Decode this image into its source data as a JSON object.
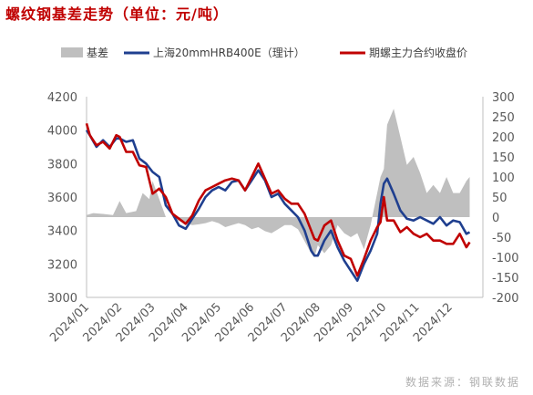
{
  "title": "螺纹钢基差走势（单位：元/吨）",
  "source_note": "数据来源：钢联数据",
  "colors": {
    "title": "#c00000",
    "basis_fill": "#bfbfbf",
    "spot_line": "#1f3f8f",
    "futures_line": "#c00000"
  },
  "chart_data": {
    "type": "line",
    "legend_position": "top",
    "grid": false,
    "x_tick_labels": [
      "2024/01",
      "2024/02",
      "2024/03",
      "2024/04",
      "2024/05",
      "2024/06",
      "2024/07",
      "2024/08",
      "2024/09",
      "2024/10",
      "2024/11",
      "2024/12"
    ],
    "y_left": {
      "range": [
        3000,
        4200
      ],
      "ticks": [
        "3000",
        "3200",
        "3400",
        "3600",
        "3800",
        "4000",
        "4200"
      ]
    },
    "y_right": {
      "range": [
        -200,
        300
      ],
      "ticks": [
        "-200",
        "-150",
        "-100",
        "-50",
        "0",
        "50",
        "100",
        "150",
        "200",
        "250",
        "300"
      ]
    },
    "series": [
      {
        "name": "基差",
        "kind": "area",
        "axis": "right",
        "x": [
          0.0,
          0.2,
          0.5,
          0.8,
          1.0,
          1.2,
          1.5,
          1.7,
          1.9,
          2.0,
          2.2,
          2.4,
          2.6,
          2.8,
          3.0,
          3.2,
          3.4,
          3.6,
          3.8,
          4.0,
          4.2,
          4.4,
          4.6,
          4.8,
          5.0,
          5.2,
          5.4,
          5.6,
          5.8,
          6.0,
          6.2,
          6.4,
          6.6,
          6.8,
          6.9,
          7.0,
          7.2,
          7.4,
          7.6,
          7.8,
          8.0,
          8.2,
          8.4,
          8.6,
          8.8,
          8.9,
          9.0,
          9.1,
          9.3,
          9.5,
          9.7,
          9.9,
          10.1,
          10.3,
          10.5,
          10.7,
          10.9,
          11.1,
          11.3,
          11.5,
          11.6
        ],
        "values": [
          5,
          10,
          8,
          5,
          40,
          10,
          15,
          60,
          45,
          90,
          45,
          0,
          0,
          -10,
          -15,
          -20,
          -18,
          -15,
          -10,
          -15,
          -25,
          -20,
          -15,
          -20,
          -30,
          -25,
          -35,
          -40,
          -30,
          -20,
          -20,
          -30,
          -60,
          -90,
          -100,
          -70,
          -90,
          -70,
          -20,
          -40,
          -50,
          -40,
          -80,
          -20,
          60,
          100,
          120,
          230,
          270,
          200,
          130,
          150,
          110,
          60,
          80,
          60,
          100,
          60,
          60,
          90,
          100
        ]
      },
      {
        "name": "上海20mmHRB400E（理计）",
        "kind": "line",
        "axis": "left",
        "x": [
          0.0,
          0.1,
          0.3,
          0.5,
          0.7,
          0.9,
          1.0,
          1.2,
          1.4,
          1.6,
          1.8,
          2.0,
          2.2,
          2.4,
          2.6,
          2.8,
          3.0,
          3.2,
          3.4,
          3.6,
          3.8,
          4.0,
          4.2,
          4.4,
          4.6,
          4.8,
          5.0,
          5.2,
          5.4,
          5.6,
          5.8,
          6.0,
          6.2,
          6.4,
          6.6,
          6.8,
          6.9,
          7.0,
          7.2,
          7.4,
          7.6,
          7.8,
          8.0,
          8.2,
          8.4,
          8.6,
          8.8,
          8.9,
          9.0,
          9.1,
          9.3,
          9.5,
          9.7,
          9.9,
          10.1,
          10.3,
          10.5,
          10.7,
          10.9,
          11.1,
          11.3,
          11.5,
          11.6
        ],
        "values": [
          4000,
          3970,
          3900,
          3940,
          3900,
          3950,
          3950,
          3930,
          3940,
          3830,
          3800,
          3750,
          3720,
          3550,
          3500,
          3430,
          3410,
          3470,
          3530,
          3600,
          3640,
          3660,
          3640,
          3690,
          3700,
          3640,
          3700,
          3760,
          3700,
          3600,
          3620,
          3560,
          3520,
          3480,
          3400,
          3280,
          3250,
          3250,
          3340,
          3400,
          3300,
          3220,
          3160,
          3100,
          3200,
          3280,
          3380,
          3560,
          3680,
          3710,
          3620,
          3520,
          3470,
          3460,
          3480,
          3460,
          3440,
          3480,
          3430,
          3460,
          3450,
          3380,
          3390
        ]
      },
      {
        "name": "期螺主力合约收盘价",
        "kind": "line",
        "axis": "left",
        "x": [
          0.0,
          0.1,
          0.3,
          0.5,
          0.7,
          0.9,
          1.0,
          1.2,
          1.4,
          1.6,
          1.8,
          2.0,
          2.2,
          2.4,
          2.6,
          2.8,
          3.0,
          3.2,
          3.4,
          3.6,
          3.8,
          4.0,
          4.2,
          4.4,
          4.6,
          4.8,
          5.0,
          5.2,
          5.4,
          5.6,
          5.8,
          6.0,
          6.2,
          6.4,
          6.6,
          6.8,
          6.9,
          7.0,
          7.2,
          7.4,
          7.6,
          7.8,
          8.0,
          8.2,
          8.4,
          8.6,
          8.8,
          8.9,
          9.0,
          9.1,
          9.3,
          9.5,
          9.7,
          9.9,
          10.1,
          10.3,
          10.5,
          10.7,
          10.9,
          11.1,
          11.3,
          11.5,
          11.6
        ],
        "values": [
          4040,
          3970,
          3910,
          3930,
          3890,
          3970,
          3960,
          3870,
          3870,
          3790,
          3780,
          3620,
          3650,
          3600,
          3500,
          3470,
          3440,
          3490,
          3580,
          3640,
          3660,
          3680,
          3700,
          3710,
          3700,
          3640,
          3720,
          3800,
          3710,
          3620,
          3640,
          3590,
          3560,
          3560,
          3500,
          3400,
          3350,
          3340,
          3430,
          3460,
          3340,
          3250,
          3230,
          3130,
          3230,
          3340,
          3420,
          3450,
          3600,
          3460,
          3460,
          3390,
          3420,
          3380,
          3360,
          3380,
          3340,
          3340,
          3320,
          3320,
          3380,
          3300,
          3330
        ]
      }
    ]
  }
}
